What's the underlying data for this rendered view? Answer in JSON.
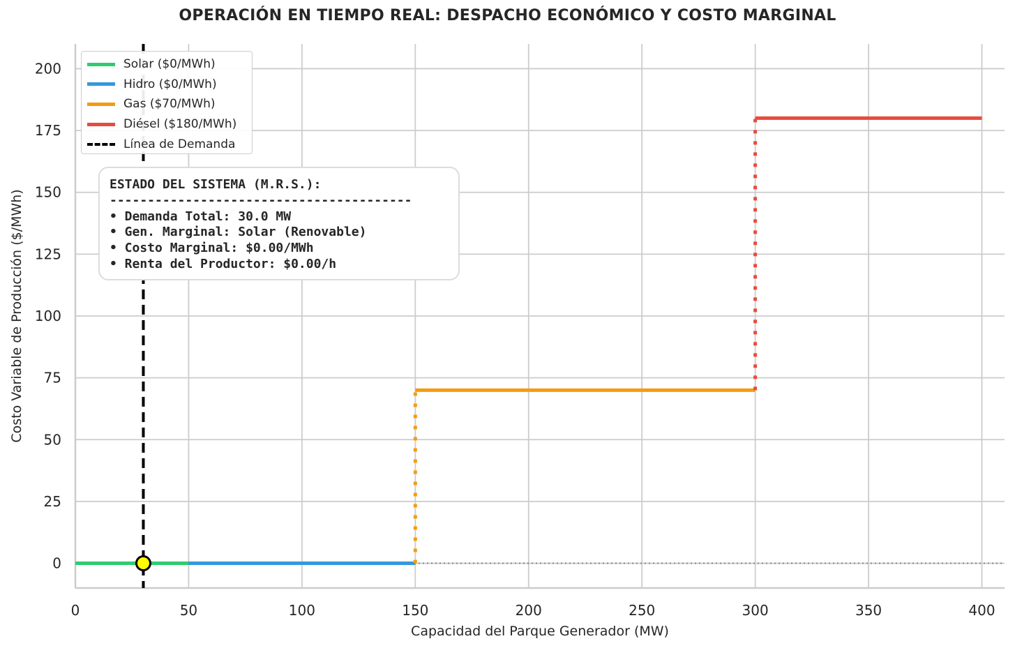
{
  "chart_data": {
    "type": "line",
    "title": "OPERACIÓN EN TIEMPO REAL: DESPACHO ECONÓMICO Y COSTO MARGINAL",
    "xlabel": "Capacidad del Parque Generador (MW)",
    "ylabel": "Costo Variable de Producción ($/MWh)",
    "xlim": [
      0,
      410
    ],
    "ylim": [
      -10,
      210
    ],
    "xticks": [
      0,
      50,
      100,
      150,
      200,
      250,
      300,
      350,
      400
    ],
    "yticks": [
      0,
      25,
      50,
      75,
      100,
      125,
      150,
      175,
      200
    ],
    "grid": true,
    "legend_position": "top-left",
    "series": [
      {
        "name": "Solar ($0/MWh)",
        "color": "#2ecc71",
        "x": [
          0,
          50
        ],
        "cost": 0
      },
      {
        "name": "Hidro ($0/MWh)",
        "color": "#3498db",
        "x": [
          50,
          150
        ],
        "cost": 0
      },
      {
        "name": "Gas ($70/MWh)",
        "color": "#f39c12",
        "x": [
          150,
          300
        ],
        "cost": 70
      },
      {
        "name": "Diésel ($180/MWh)",
        "color": "#e74c3c",
        "x": [
          300,
          400
        ],
        "cost": 180
      }
    ],
    "demand": {
      "name": "Línea de Demanda",
      "x": 30,
      "color": "#000000"
    },
    "equilibrium_point": {
      "x": 30,
      "y": 0,
      "color": "#ffff00"
    }
  },
  "status_box": {
    "title": "ESTADO DEL SISTEMA (M.R.S.):",
    "separator": "----------------------------------------",
    "lines": [
      "• Demanda Total: 30.0 MW",
      "• Gen. Marginal: Solar (Renovable)",
      "• Costo Marginal: $0.00/MWh",
      "• Renta del Productor: $0.00/h"
    ]
  }
}
